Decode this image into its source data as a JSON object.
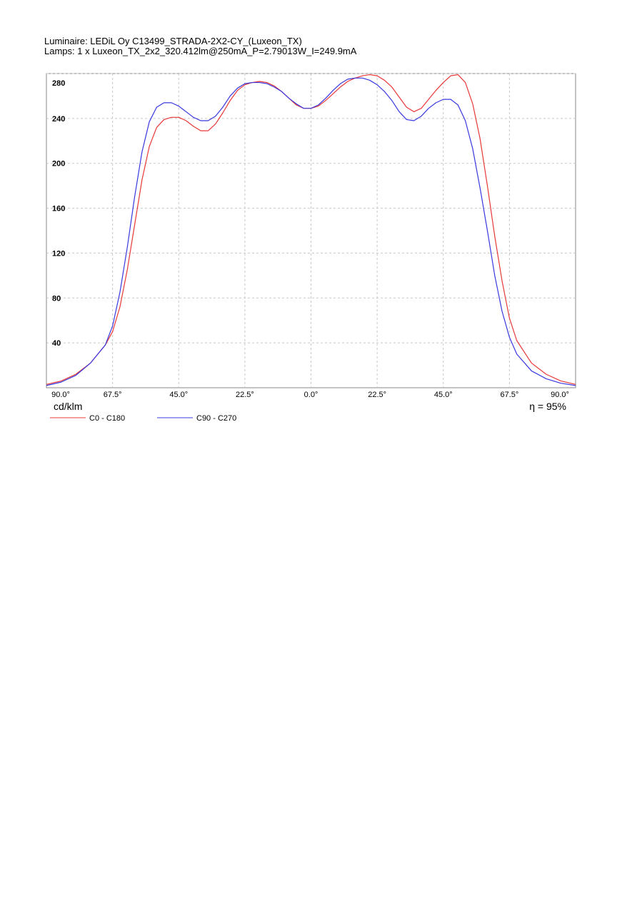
{
  "chart_data": {
    "type": "line",
    "title": "Luminaire: LEDiL Oy C13499_STRADA-2X2-CY_(Luxeon_TX)",
    "subtitle": "Lamps: 1 x Luxeon_TX_2x2_320.412lm@250mA_P=2.79013W_I=249.9mA",
    "ylabel": "cd/klm",
    "annotation": "η = 95%",
    "x": [
      -90,
      -85,
      -80,
      -75,
      -70,
      -67.5,
      -65,
      -62.5,
      -60,
      -57.5,
      -55,
      -52.5,
      -50,
      -47.5,
      -45,
      -42.5,
      -40,
      -37.5,
      -35,
      -32.5,
      -30,
      -27.5,
      -25,
      -22.5,
      -20,
      -17.5,
      -15,
      -12.5,
      -10,
      -7.5,
      -5,
      -2.5,
      0,
      2.5,
      5,
      7.5,
      10,
      12.5,
      15,
      17.5,
      20,
      22.5,
      25,
      27.5,
      30,
      32.5,
      35,
      37.5,
      40,
      42.5,
      45,
      47.5,
      50,
      52.5,
      55,
      57.5,
      60,
      62.5,
      65,
      67.5,
      70,
      75,
      80,
      85,
      90
    ],
    "series": [
      {
        "name": "C0 - C180",
        "color": "#e83838",
        "values": [
          3,
          6,
          12,
          22,
          38,
          50,
          72,
          105,
          145,
          185,
          215,
          232,
          239,
          241,
          241,
          238,
          233,
          229,
          229,
          235,
          245,
          256,
          265,
          270,
          272,
          273,
          272,
          269,
          264,
          258,
          252,
          249,
          249,
          251,
          256,
          262,
          268,
          273,
          276,
          278,
          279,
          278,
          274,
          268,
          259,
          250,
          246,
          249,
          257,
          265,
          272,
          278,
          279,
          272,
          253,
          222,
          180,
          135,
          95,
          62,
          42,
          22,
          12,
          6,
          3
        ]
      },
      {
        "name": "C90 - C270",
        "color": "#3838e0",
        "values": [
          2,
          5,
          11,
          22,
          38,
          55,
          85,
          125,
          170,
          210,
          237,
          250,
          254,
          254,
          251,
          246,
          241,
          238,
          238,
          242,
          250,
          260,
          267,
          271,
          272,
          272,
          271,
          268,
          264,
          258,
          253,
          249,
          249,
          252,
          258,
          265,
          271,
          275,
          276,
          276,
          274,
          270,
          264,
          256,
          246,
          239,
          238,
          242,
          249,
          254,
          257,
          257,
          252,
          238,
          213,
          178,
          140,
          100,
          68,
          45,
          30,
          15,
          8,
          4,
          2
        ]
      }
    ],
    "xlim": [
      -90,
      90
    ],
    "xticks": [
      {
        "value": -90,
        "label": "90.0°"
      },
      {
        "value": -67.5,
        "label": "67.5°"
      },
      {
        "value": -45,
        "label": "45.0°"
      },
      {
        "value": -22.5,
        "label": "22.5°"
      },
      {
        "value": 0,
        "label": "0.0°"
      },
      {
        "value": 22.5,
        "label": "22.5°"
      },
      {
        "value": 45,
        "label": "45.0°"
      },
      {
        "value": 67.5,
        "label": "67.5°"
      },
      {
        "value": 90,
        "label": "90.0°"
      }
    ],
    "ylim": [
      0,
      280
    ],
    "yticks": [
      40,
      80,
      120,
      160,
      200,
      240,
      280
    ],
    "grid": true
  }
}
